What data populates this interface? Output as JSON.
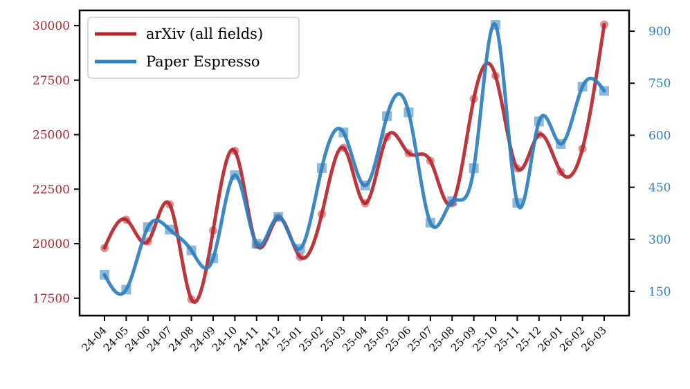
{
  "chart_data": {
    "type": "line",
    "categories": [
      "24-04",
      "24-05",
      "24-06",
      "24-07",
      "24-08",
      "24-09",
      "24-10",
      "24-11",
      "24-12",
      "25-01",
      "25-02",
      "25-03",
      "25-04",
      "25-05",
      "25-06",
      "25-07",
      "25-08",
      "25-09",
      "25-10",
      "25-11",
      "25-12",
      "26-01",
      "26-02",
      "26-03"
    ],
    "series": [
      {
        "name": "arXiv (all fields)",
        "axis": "left",
        "color": "#b5262c",
        "marker": "circle",
        "values": [
          19800,
          21100,
          20100,
          21800,
          17450,
          20600,
          24250,
          19950,
          21200,
          19400,
          21350,
          24400,
          21850,
          24900,
          24150,
          23800,
          21850,
          26650,
          27700,
          23450,
          25000,
          23300,
          24350,
          30050
        ]
      },
      {
        "name": "Paper Espresso",
        "axis": "right",
        "color": "#2f7fbd",
        "marker": "square",
        "values": [
          198,
          155,
          335,
          328,
          268,
          245,
          485,
          287,
          365,
          273,
          505,
          608,
          455,
          655,
          666,
          348,
          410,
          505,
          918,
          405,
          640,
          575,
          740,
          728
        ]
      }
    ],
    "y_left": {
      "lim": [
        16700,
        30700
      ],
      "ticks": [
        17500,
        20000,
        22500,
        25000,
        27500,
        30000
      ],
      "tick_labels": [
        "17500",
        "20000",
        "22500",
        "25000",
        "27500",
        "30000"
      ],
      "color": "#b5262c"
    },
    "y_right": {
      "lim": [
        80,
        960
      ],
      "ticks": [
        150,
        300,
        450,
        600,
        750,
        900
      ],
      "tick_labels": [
        "150",
        "300",
        "450",
        "600",
        "750",
        "900"
      ],
      "color": "#2f7fbd"
    },
    "title": "",
    "xlabel": "",
    "ylabel": "",
    "grid": false,
    "legend": "top-left"
  }
}
